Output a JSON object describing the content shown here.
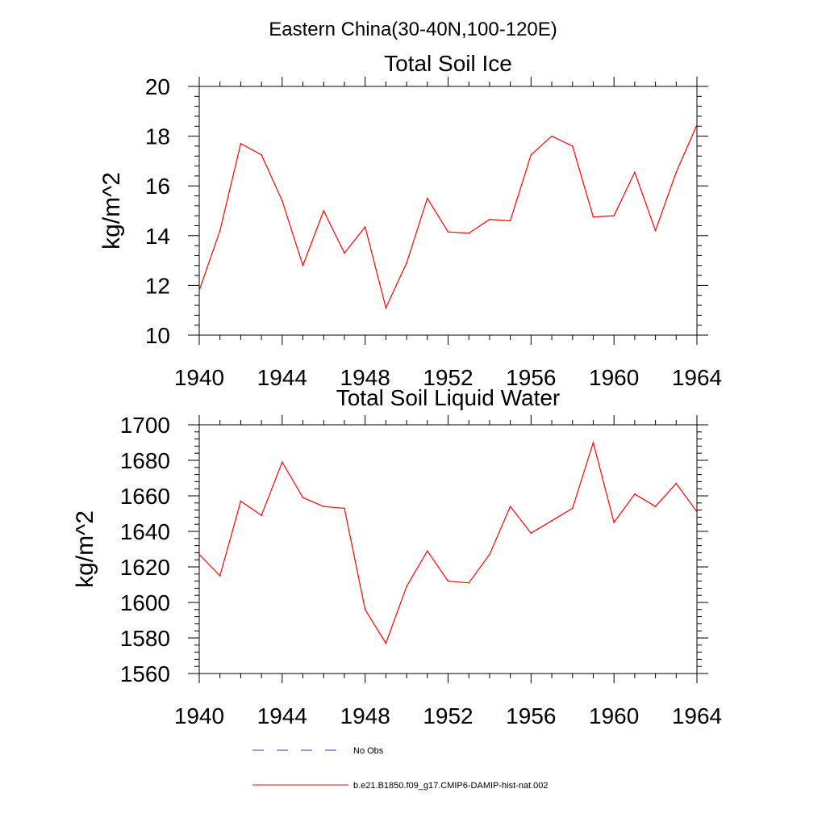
{
  "page_title": "Eastern China(30-40N,100-120E)",
  "colors": {
    "model": "#ff0000",
    "obs": "#3a3a8a",
    "axis": "#000000"
  },
  "legend": {
    "items": [
      {
        "label": "No Obs",
        "style": "dashed",
        "color": "#3a3a8a"
      },
      {
        "label": "b.e21.B1850.f09_g17.CMIP6-DAMIP-hist-nat.002",
        "style": "solid",
        "color": "#ff0000"
      }
    ]
  },
  "chart_data": [
    {
      "type": "line",
      "title": "Total Soil Ice",
      "xlabel": "",
      "ylabel": "kg/m^2",
      "xlim": [
        1940,
        1964
      ],
      "ylim": [
        10,
        20
      ],
      "x_ticks": [
        1940,
        1944,
        1948,
        1952,
        1956,
        1960,
        1964
      ],
      "y_ticks": [
        10,
        12,
        14,
        16,
        18,
        20
      ],
      "x_minor_step": 1,
      "y_minor_step": 0.4,
      "grid": false,
      "x": [
        1940,
        1941,
        1942,
        1943,
        1944,
        1945,
        1946,
        1947,
        1948,
        1949,
        1950,
        1951,
        1952,
        1953,
        1954,
        1955,
        1956,
        1957,
        1958,
        1959,
        1960,
        1961,
        1962,
        1963,
        1964
      ],
      "series": [
        {
          "name": "b.e21.B1850.f09_g17.CMIP6-DAMIP-hist-nat.002",
          "values": [
            11.8,
            14.2,
            17.7,
            17.25,
            15.4,
            12.8,
            15.0,
            13.3,
            14.35,
            11.1,
            12.9,
            15.5,
            14.15,
            14.1,
            14.65,
            14.6,
            17.25,
            18.0,
            17.6,
            14.75,
            14.8,
            16.55,
            14.2,
            16.55,
            18.45
          ]
        }
      ]
    },
    {
      "type": "line",
      "title": "Total Soil Liquid Water",
      "xlabel": "",
      "ylabel": "kg/m^2",
      "xlim": [
        1940,
        1964
      ],
      "ylim": [
        1560,
        1700
      ],
      "x_ticks": [
        1940,
        1944,
        1948,
        1952,
        1956,
        1960,
        1964
      ],
      "y_ticks": [
        1560,
        1580,
        1600,
        1620,
        1640,
        1660,
        1680,
        1700
      ],
      "x_minor_step": 1,
      "y_minor_step": 4,
      "grid": false,
      "x": [
        1940,
        1941,
        1942,
        1943,
        1944,
        1945,
        1946,
        1947,
        1948,
        1949,
        1950,
        1951,
        1952,
        1953,
        1954,
        1955,
        1956,
        1957,
        1958,
        1959,
        1960,
        1961,
        1962,
        1963,
        1964
      ],
      "series": [
        {
          "name": "b.e21.B1850.f09_g17.CMIP6-DAMIP-hist-nat.002",
          "values": [
            1627,
            1615,
            1657,
            1649,
            1679,
            1659,
            1654,
            1653,
            1596,
            1577,
            1609,
            1629,
            1612,
            1611,
            1627,
            1654,
            1639,
            1646,
            1653,
            1690,
            1645,
            1661,
            1654,
            1667,
            1651
          ]
        }
      ]
    }
  ]
}
